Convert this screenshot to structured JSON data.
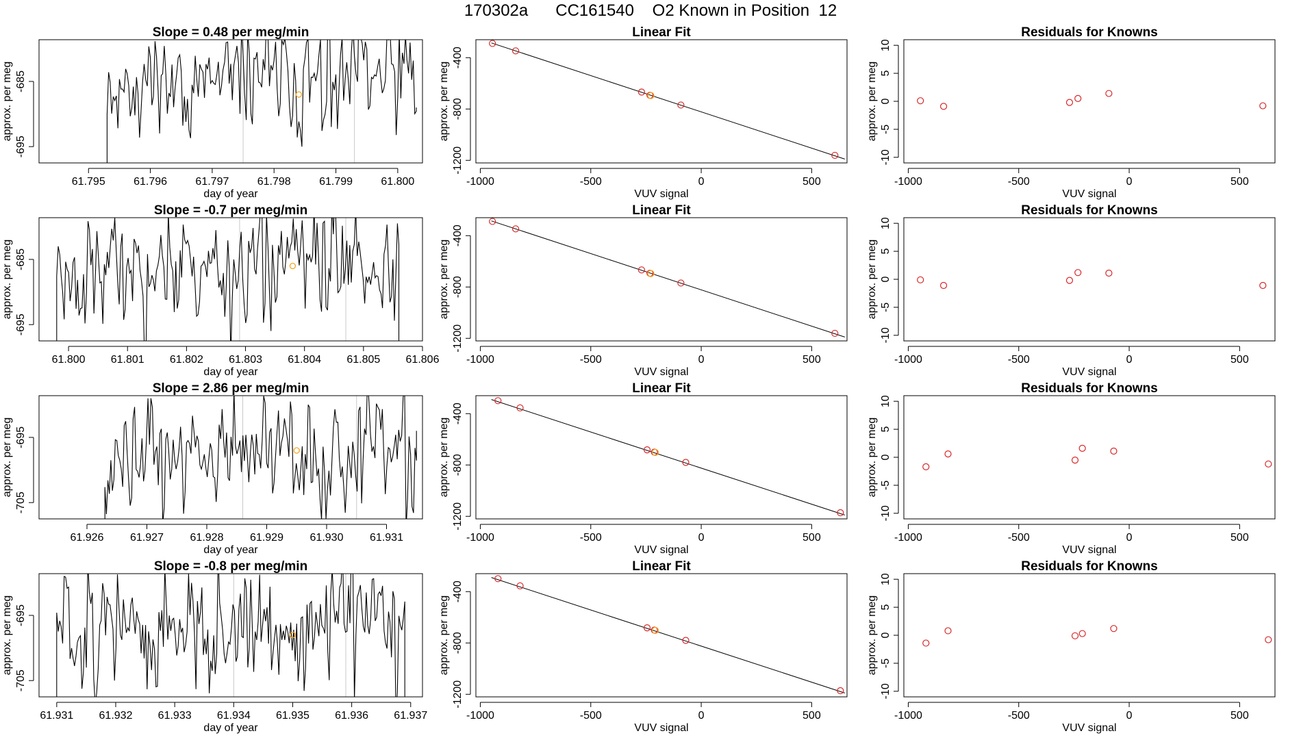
{
  "figure": {
    "title": "170302a      CC161540    O2 Known in Position  12"
  },
  "colors": {
    "line": "#000000",
    "known": "#d62728",
    "sample": "#f5a623",
    "vline": "#c8c8c8"
  },
  "chart_data": [
    {
      "type": "line",
      "role": "timeseries",
      "title": "Slope =  0.48  per meg/min",
      "xlabel": "day of year",
      "ylabel": "approx. per meg",
      "xlim": [
        61.7942,
        61.8004
      ],
      "ylim": [
        -697.5,
        -678.6
      ],
      "xticks": [
        61.795,
        61.796,
        61.797,
        61.798,
        61.799,
        61.8
      ],
      "xtick_labels": [
        "61.795",
        "61.796",
        "61.797",
        "61.798",
        "61.799",
        "61.800"
      ],
      "yticks": [
        -695,
        -685
      ],
      "ytick_labels": [
        "-695",
        "-685"
      ],
      "vlines": [
        61.7975,
        61.7993
      ],
      "highlight": {
        "x": 61.7984,
        "y": -687
      },
      "series": {
        "x_start": 61.7953,
        "x_end": 61.8003,
        "n": 200,
        "mean": -685,
        "sd": 4.8,
        "seed": 11,
        "x_end_value": -689
      }
    },
    {
      "type": "scatter",
      "role": "linear_fit",
      "title": "Linear Fit",
      "xlabel": "VUV signal",
      "ylabel": "approx. per meg",
      "xlim": [
        -1020,
        660
      ],
      "ylim": [
        -1220,
        -260
      ],
      "xticks": [
        -1000,
        -500,
        0,
        500
      ],
      "xtick_labels": [
        "-1000",
        "-500",
        "0",
        "500"
      ],
      "yticks": [
        -1200,
        -800,
        -400
      ],
      "ytick_labels": [
        "-1200",
        "-800",
        "-400"
      ],
      "fit_line": {
        "x": [
          -950,
          650
        ],
        "y": [
          -285,
          -1190
        ]
      },
      "points": {
        "x": [
          -945,
          -840,
          -270,
          -232,
          -92,
          605
        ],
        "y": [
          -289,
          -347,
          -668,
          -693,
          -769,
          -1161
        ]
      },
      "sample": {
        "x": -228,
        "y": -695
      }
    },
    {
      "type": "scatter",
      "role": "residuals",
      "title": "Residuals for Knowns",
      "xlabel": "VUV signal",
      "ylabel": "approx. per meg",
      "xlim": [
        -1020,
        660
      ],
      "ylim": [
        -11,
        11
      ],
      "xticks": [
        -1000,
        -500,
        0,
        500
      ],
      "xtick_labels": [
        "-1000",
        "-500",
        "0",
        "500"
      ],
      "yticks": [
        -10,
        -5,
        0,
        5,
        10
      ],
      "ytick_labels": [
        "-10",
        "-5",
        "0",
        "5",
        "10"
      ],
      "points": {
        "x": [
          -945,
          -840,
          -270,
          -232,
          -92,
          605
        ],
        "y": [
          0.1,
          -0.9,
          -0.2,
          0.5,
          1.4,
          -0.8
        ]
      }
    },
    {
      "type": "line",
      "role": "timeseries",
      "title": "Slope =  -0.7  per meg/min",
      "xlabel": "day of year",
      "ylabel": "approx. per meg",
      "xlim": [
        61.7995,
        61.806
      ],
      "ylim": [
        -697.5,
        -678.6
      ],
      "xticks": [
        61.8,
        61.801,
        61.802,
        61.803,
        61.804,
        61.805,
        61.806
      ],
      "xtick_labels": [
        "61.800",
        "61.801",
        "61.802",
        "61.803",
        "61.804",
        "61.805",
        "61.806"
      ],
      "yticks": [
        -695,
        -685
      ],
      "ytick_labels": [
        "-695",
        "-685"
      ],
      "vlines": [
        61.8029,
        61.8047
      ],
      "highlight": {
        "x": 61.8038,
        "y": -686
      },
      "series": {
        "x_start": 61.7998,
        "x_end": 61.8056,
        "n": 230,
        "mean": -686,
        "sd": 5.2,
        "seed": 23,
        "x_end_value": -697.5
      }
    },
    {
      "type": "scatter",
      "role": "linear_fit",
      "title": "Linear Fit",
      "xlabel": "VUV signal",
      "ylabel": "approx. per meg",
      "xlim": [
        -1020,
        660
      ],
      "ylim": [
        -1220,
        -260
      ],
      "xticks": [
        -1000,
        -500,
        0,
        500
      ],
      "xtick_labels": [
        "-1000",
        "-500",
        "0",
        "500"
      ],
      "yticks": [
        -1200,
        -800,
        -400
      ],
      "ytick_labels": [
        "-1200",
        "-800",
        "-400"
      ],
      "fit_line": {
        "x": [
          -950,
          650
        ],
        "y": [
          -285,
          -1190
        ]
      },
      "points": {
        "x": [
          -945,
          -840,
          -270,
          -232,
          -92,
          605
        ],
        "y": [
          -289,
          -347,
          -667,
          -693,
          -769,
          -1161
        ]
      },
      "sample": {
        "x": -228,
        "y": -695
      }
    },
    {
      "type": "scatter",
      "role": "residuals",
      "title": "Residuals for Knowns",
      "xlabel": "VUV signal",
      "ylabel": "approx. per meg",
      "xlim": [
        -1020,
        660
      ],
      "ylim": [
        -11,
        11
      ],
      "xticks": [
        -1000,
        -500,
        0,
        500
      ],
      "xtick_labels": [
        "-1000",
        "-500",
        "0",
        "500"
      ],
      "yticks": [
        -10,
        -5,
        0,
        5,
        10
      ],
      "ytick_labels": [
        "-10",
        "-5",
        "0",
        "5",
        "10"
      ],
      "points": {
        "x": [
          -945,
          -840,
          -270,
          -232,
          -92,
          605
        ],
        "y": [
          -0.1,
          -1.1,
          -0.2,
          1.2,
          1.1,
          -1.1
        ]
      }
    },
    {
      "type": "line",
      "role": "timeseries",
      "title": "Slope =  2.86  per meg/min",
      "xlabel": "day of year",
      "ylabel": "approx. per meg",
      "xlim": [
        61.9252,
        61.9316
      ],
      "ylim": [
        -707.5,
        -688.6
      ],
      "xticks": [
        61.926,
        61.927,
        61.928,
        61.929,
        61.93,
        61.931
      ],
      "xtick_labels": [
        "61.926",
        "61.927",
        "61.928",
        "61.929",
        "61.930",
        "61.931"
      ],
      "yticks": [
        -705,
        -695
      ],
      "ytick_labels": [
        "-705",
        "-695"
      ],
      "vlines": [
        61.9286,
        61.9305
      ],
      "highlight": {
        "x": 61.9295,
        "y": -697
      },
      "series": {
        "x_start": 61.9263,
        "x_end": 61.9315,
        "n": 210,
        "mean": -698,
        "sd": 5.0,
        "seed": 37,
        "x_end_value": -694
      }
    },
    {
      "type": "scatter",
      "role": "linear_fit",
      "title": "Linear Fit",
      "xlabel": "VUV signal",
      "ylabel": "approx. per meg",
      "xlim": [
        -1020,
        660
      ],
      "ylim": [
        -1220,
        -260
      ],
      "xticks": [
        -1000,
        -500,
        0,
        500
      ],
      "xtick_labels": [
        "-1000",
        "-500",
        "0",
        "500"
      ],
      "yticks": [
        -1200,
        -800,
        -400
      ],
      "ytick_labels": [
        "-1200",
        "-800",
        "-400"
      ],
      "fit_line": {
        "x": [
          -950,
          650
        ],
        "y": [
          -290,
          -1190
        ]
      },
      "points": {
        "x": [
          -920,
          -820,
          -245,
          -212,
          -70,
          630
        ],
        "y": [
          -299,
          -355,
          -682,
          -700,
          -780,
          -1172
        ]
      },
      "sample": {
        "x": -208,
        "y": -702
      }
    },
    {
      "type": "scatter",
      "role": "residuals",
      "title": "Residuals for Knowns",
      "xlabel": "VUV signal",
      "ylabel": "approx. per meg",
      "xlim": [
        -1020,
        660
      ],
      "ylim": [
        -11,
        11
      ],
      "xticks": [
        -1000,
        -500,
        0,
        500
      ],
      "xtick_labels": [
        "-1000",
        "-500",
        "0",
        "500"
      ],
      "yticks": [
        -10,
        -5,
        0,
        5,
        10
      ],
      "ytick_labels": [
        "-10",
        "-5",
        "0",
        "5",
        "10"
      ],
      "points": {
        "x": [
          -920,
          -820,
          -245,
          -212,
          -70,
          630
        ],
        "y": [
          -1.7,
          0.6,
          -0.5,
          1.6,
          1.1,
          -1.2
        ]
      }
    },
    {
      "type": "line",
      "role": "timeseries",
      "title": "Slope =  -0.8  per meg/min",
      "xlabel": "day of year",
      "ylabel": "approx. per meg",
      "xlim": [
        61.9307,
        61.9372
      ],
      "ylim": [
        -707.5,
        -688.6
      ],
      "xticks": [
        61.931,
        61.932,
        61.933,
        61.934,
        61.935,
        61.936,
        61.937
      ],
      "xtick_labels": [
        "61.931",
        "61.932",
        "61.933",
        "61.934",
        "61.935",
        "61.936",
        "61.937"
      ],
      "yticks": [
        -705,
        -695
      ],
      "ytick_labels": [
        "-705",
        "-695"
      ],
      "vlines": [
        61.934,
        61.9359
      ],
      "highlight": {
        "x": 61.935,
        "y": -698
      },
      "series": {
        "x_start": 61.931,
        "x_end": 61.9369,
        "n": 235,
        "mean": -697,
        "sd": 5.3,
        "seed": 51,
        "x_end_value": -707.5
      }
    },
    {
      "type": "scatter",
      "role": "linear_fit",
      "title": "Linear Fit",
      "xlabel": "VUV signal",
      "ylabel": "approx. per meg",
      "xlim": [
        -1020,
        660
      ],
      "ylim": [
        -1220,
        -260
      ],
      "xticks": [
        -1000,
        -500,
        0,
        500
      ],
      "xtick_labels": [
        "-1000",
        "-500",
        "0",
        "500"
      ],
      "yticks": [
        -1200,
        -800,
        -400
      ],
      "ytick_labels": [
        "-1200",
        "-800",
        "-400"
      ],
      "fit_line": {
        "x": [
          -950,
          650
        ],
        "y": [
          -290,
          -1190
        ]
      },
      "points": {
        "x": [
          -920,
          -820,
          -245,
          -212,
          -70,
          630
        ],
        "y": [
          -299,
          -355,
          -682,
          -700,
          -780,
          -1172
        ]
      },
      "sample": {
        "x": -208,
        "y": -702
      }
    },
    {
      "type": "scatter",
      "role": "residuals",
      "title": "Residuals for Knowns",
      "xlabel": "VUV signal",
      "ylabel": "approx. per meg",
      "xlim": [
        -1020,
        660
      ],
      "ylim": [
        -11,
        11
      ],
      "xticks": [
        -1000,
        -500,
        0,
        500
      ],
      "xtick_labels": [
        "-1000",
        "-500",
        "0",
        "500"
      ],
      "yticks": [
        -10,
        -5,
        0,
        5,
        10
      ],
      "ytick_labels": [
        "-10",
        "-5",
        "0",
        "5",
        "10"
      ],
      "points": {
        "x": [
          -920,
          -820,
          -245,
          -212,
          -70,
          630
        ],
        "y": [
          -1.4,
          0.8,
          -0.1,
          0.3,
          1.2,
          -0.8
        ]
      }
    }
  ]
}
